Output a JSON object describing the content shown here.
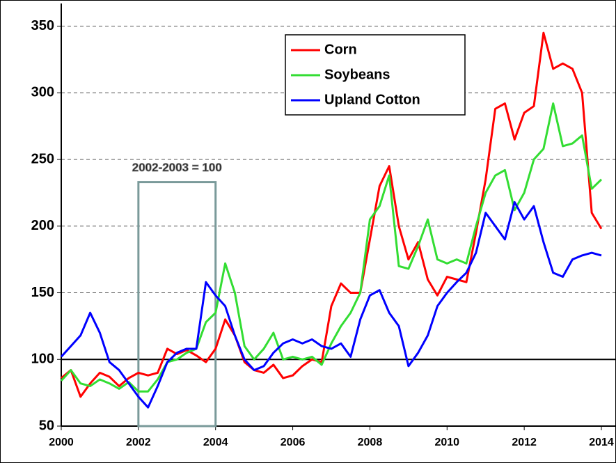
{
  "chart_data": {
    "type": "line",
    "x": [
      2000,
      2000.25,
      2000.5,
      2000.75,
      2001,
      2001.25,
      2001.5,
      2001.75,
      2002,
      2002.25,
      2002.5,
      2002.75,
      2003,
      2003.25,
      2003.5,
      2003.75,
      2004,
      2004.25,
      2004.5,
      2004.75,
      2005,
      2005.25,
      2005.5,
      2005.75,
      2006,
      2006.25,
      2006.5,
      2006.75,
      2007,
      2007.25,
      2007.5,
      2007.75,
      2008,
      2008.25,
      2008.5,
      2008.75,
      2009,
      2009.25,
      2009.5,
      2009.75,
      2010,
      2010.25,
      2010.5,
      2010.75,
      2011,
      2011.25,
      2011.5,
      2011.75,
      2012,
      2012.25,
      2012.5,
      2012.75,
      2013,
      2013.25,
      2013.5,
      2013.75,
      2014
    ],
    "series": [
      {
        "name": "Corn",
        "color": "#ff0000",
        "values": [
          86,
          92,
          72,
          82,
          90,
          87,
          80,
          86,
          90,
          88,
          90,
          108,
          104,
          107,
          103,
          98,
          108,
          130,
          118,
          98,
          92,
          90,
          96,
          86,
          88,
          95,
          100,
          98,
          140,
          157,
          150,
          150,
          190,
          230,
          245,
          200,
          175,
          188,
          160,
          148,
          162,
          160,
          158,
          195,
          235,
          288,
          292,
          265,
          285,
          290,
          345,
          318,
          322,
          318,
          300,
          210,
          198
        ]
      },
      {
        "name": "Soybeans",
        "color": "#33dd33",
        "values": [
          84,
          92,
          82,
          80,
          85,
          82,
          78,
          83,
          76,
          76,
          85,
          98,
          100,
          105,
          108,
          128,
          135,
          172,
          150,
          110,
          100,
          108,
          120,
          100,
          102,
          100,
          102,
          96,
          112,
          125,
          135,
          150,
          205,
          215,
          238,
          170,
          168,
          185,
          205,
          175,
          172,
          175,
          172,
          200,
          225,
          238,
          242,
          212,
          225,
          250,
          258,
          292,
          260,
          262,
          268,
          228,
          235
        ]
      },
      {
        "name": "Upland Cotton",
        "color": "#0000ff",
        "values": [
          102,
          110,
          118,
          135,
          120,
          98,
          92,
          82,
          72,
          64,
          80,
          98,
          105,
          108,
          108,
          158,
          148,
          140,
          118,
          100,
          92,
          95,
          105,
          112,
          115,
          112,
          115,
          110,
          108,
          112,
          102,
          130,
          148,
          152,
          135,
          125,
          95,
          105,
          118,
          140,
          150,
          158,
          165,
          180,
          210,
          200,
          190,
          218,
          205,
          215,
          188,
          165,
          162,
          175,
          178,
          180,
          178
        ]
      }
    ],
    "xlim": [
      2000,
      2014
    ],
    "xticks": [
      2000,
      2002,
      2004,
      2006,
      2008,
      2010,
      2012,
      2014
    ],
    "ylim": [
      50,
      367
    ],
    "yticks": [
      50,
      100,
      150,
      200,
      250,
      300,
      350
    ],
    "grid": true,
    "hline": 100,
    "legend": "top-center",
    "base_period": {
      "label": "2002-2003 = 100",
      "x": [
        2002,
        2004
      ],
      "y": [
        50,
        233
      ]
    }
  }
}
